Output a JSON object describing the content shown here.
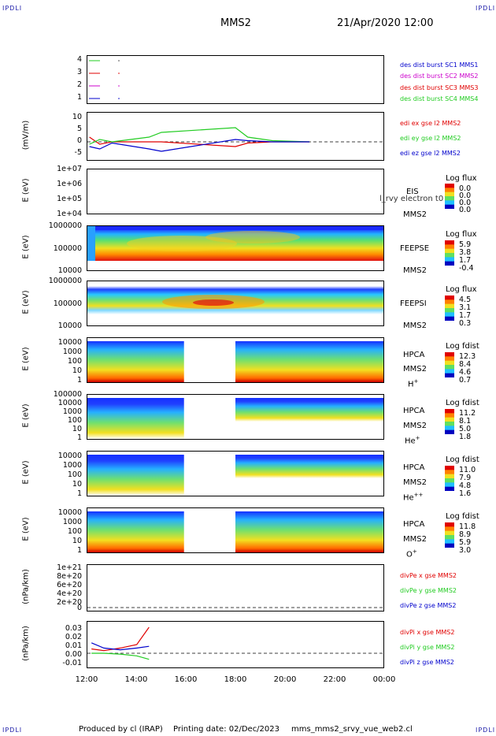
{
  "corner_label": "IPDLI",
  "header": {
    "spacecraft": "MMS2",
    "datetime": "21/Apr/2020 12:00"
  },
  "footer": {
    "credit": "Produced by cl (IRAP)",
    "printed": "Printing date: 02/Dec/2023",
    "script": "mms_mms2_srvy_vue_web2.cl"
  },
  "x_ticks": [
    "12:00",
    "14:00",
    "16:00",
    "18:00",
    "20:00",
    "22:00",
    "00:00"
  ],
  "colors": {
    "red": "#e00000",
    "green": "#22cc22",
    "blue": "#0000cc",
    "magenta": "#cc00cc",
    "panel_frame": "#000000"
  },
  "panels": {
    "burst": {
      "y_ticks": [
        "4",
        "3",
        "2",
        "1"
      ],
      "legend": [
        {
          "text": "des dist burst SC1 MMS1",
          "color": "#0000cc"
        },
        {
          "text": "des dist burst SC2 MMS2",
          "color": "#cc00cc"
        },
        {
          "text": "des dist burst SC3 MMS3",
          "color": "#e00000"
        },
        {
          "text": "des dist burst SC4 MMS4",
          "color": "#22cc22"
        }
      ]
    },
    "edi": {
      "ylabel": "(mV/m)",
      "y_ticks": [
        "10",
        "5",
        "0",
        "-5"
      ],
      "legend": [
        {
          "text": "edi ex gse l2 MMS2",
          "color": "#e00000"
        },
        {
          "text": "edi ey gse l2 MMS2",
          "color": "#22cc22"
        },
        {
          "text": "edi ez gse l2 MMS2",
          "color": "#0000cc"
        }
      ]
    },
    "eis": {
      "ylabel": "E (eV)",
      "y_ticks": [
        "1e+07",
        "1e+06",
        "1e+05",
        "1e+04"
      ],
      "instrument": "EIS",
      "overlay": "l_rvy electron t0",
      "spacecraft": "MMS2",
      "cb_title": "Log flux",
      "cb_values": [
        "0.0",
        "0.0",
        "0.0",
        "0.0"
      ]
    },
    "feepse": {
      "ylabel": "E (eV)",
      "y_ticks": [
        "1000000",
        "100000",
        "10000"
      ],
      "instrument": "FEEPSE",
      "spacecraft": "MMS2",
      "cb_title": "Log flux",
      "cb_values": [
        "5.9",
        "3.8",
        "1.7",
        "-0.4"
      ]
    },
    "feepsi": {
      "ylabel": "E (eV)",
      "y_ticks": [
        "1000000",
        "100000",
        "10000"
      ],
      "instrument": "FEEPSI",
      "spacecraft": "MMS2",
      "cb_title": "Log flux",
      "cb_values": [
        "4.5",
        "3.1",
        "1.7",
        "0.3"
      ]
    },
    "hpca_h": {
      "ylabel": "E (eV)",
      "y_ticks": [
        "10000",
        "1000",
        "100",
        "10",
        "1"
      ],
      "instrument": "HPCA",
      "spacecraft": "MMS2",
      "species": "H",
      "charge": "+",
      "cb_title": "Log fdist",
      "cb_values": [
        "12.3",
        "8.4",
        "4.6",
        "0.7"
      ]
    },
    "hpca_he": {
      "ylabel": "E (eV)",
      "y_ticks": [
        "100000",
        "10000",
        "1000",
        "100",
        "10",
        "1"
      ],
      "instrument": "HPCA",
      "spacecraft": "MMS2",
      "species": "He",
      "charge": "+",
      "cb_title": "Log fdist",
      "cb_values": [
        "11.2",
        "8.1",
        "5.0",
        "1.8"
      ]
    },
    "hpca_hepp": {
      "ylabel": "E (eV)",
      "y_ticks": [
        "10000",
        "1000",
        "100",
        "10",
        "1"
      ],
      "instrument": "HPCA",
      "spacecraft": "MMS2",
      "species": "He",
      "charge": "++",
      "cb_title": "Log fdist",
      "cb_values": [
        "11.0",
        "7.9",
        "4.8",
        "1.6"
      ]
    },
    "hpca_o": {
      "ylabel": "E (eV)",
      "y_ticks": [
        "10000",
        "1000",
        "100",
        "10",
        "1"
      ],
      "instrument": "HPCA",
      "spacecraft": "MMS2",
      "species": "O",
      "charge": "+",
      "cb_title": "Log fdist",
      "cb_values": [
        "11.8",
        "8.9",
        "5.9",
        "3.0"
      ]
    },
    "divpe": {
      "ylabel": "(nPa/km)",
      "y_ticks": [
        "1e+21",
        "8e+20",
        "6e+20",
        "4e+20",
        "2e+20",
        "0"
      ],
      "legend": [
        {
          "text": "divPe x gse MMS2",
          "color": "#e00000"
        },
        {
          "text": "divPe y gse MMS2",
          "color": "#22cc22"
        },
        {
          "text": "divPe z gse MMS2",
          "color": "#0000cc"
        }
      ]
    },
    "divpi": {
      "ylabel": "(nPa/km)",
      "y_ticks": [
        "0.03",
        "0.02",
        "0.01",
        "0.00",
        "-0.01"
      ],
      "legend": [
        {
          "text": "divPi x gse MMS2",
          "color": "#e00000"
        },
        {
          "text": "divPi y gse MMS2",
          "color": "#22cc22"
        },
        {
          "text": "divPi z gse MMS2",
          "color": "#0000cc"
        }
      ]
    }
  },
  "chart_data": {
    "type": "line",
    "x_range": [
      "12:00",
      "00:00"
    ],
    "spectrogram_gap": [
      "15:55",
      "18:00"
    ],
    "edi_series": [
      {
        "name": "edi ex gse l2 MMS2",
        "x": [
          "12:05",
          "12:30",
          "13:00",
          "14:30",
          "15:00",
          "18:00",
          "18:30",
          "19:30",
          "21:00"
        ],
        "values": [
          2,
          -1,
          0,
          0,
          0,
          -2,
          -0.5,
          0,
          0
        ]
      },
      {
        "name": "edi ey gse l2 MMS2",
        "x": [
          "12:05",
          "12:30",
          "13:00",
          "14:30",
          "15:00",
          "18:00",
          "18:30",
          "19:30",
          "21:00"
        ],
        "values": [
          -1,
          1,
          0,
          2,
          4,
          6,
          2,
          0.5,
          0
        ]
      },
      {
        "name": "edi ez gse l2 MMS2",
        "x": [
          "12:05",
          "12:30",
          "13:00",
          "14:30",
          "15:00",
          "18:00",
          "18:30",
          "19:30",
          "21:00"
        ],
        "values": [
          -2,
          -3,
          -0.5,
          -3,
          -4,
          1,
          0.5,
          0,
          0
        ]
      }
    ],
    "divpi_series": [
      {
        "name": "divPi x gse MMS2",
        "x": [
          "12:10",
          "12:40",
          "13:20",
          "14:00",
          "14:30"
        ],
        "values": [
          0.005,
          0.003,
          0.006,
          0.01,
          0.03
        ]
      },
      {
        "name": "divPi y gse MMS2",
        "x": [
          "12:10",
          "12:40",
          "13:20",
          "14:00",
          "14:30"
        ],
        "values": [
          0.0,
          0.0,
          -0.001,
          -0.003,
          -0.007
        ]
      },
      {
        "name": "divPi z gse MMS2",
        "x": [
          "12:10",
          "12:40",
          "13:20",
          "14:00",
          "14:30"
        ],
        "values": [
          0.012,
          0.006,
          0.004,
          0.006,
          0.008
        ]
      }
    ]
  }
}
